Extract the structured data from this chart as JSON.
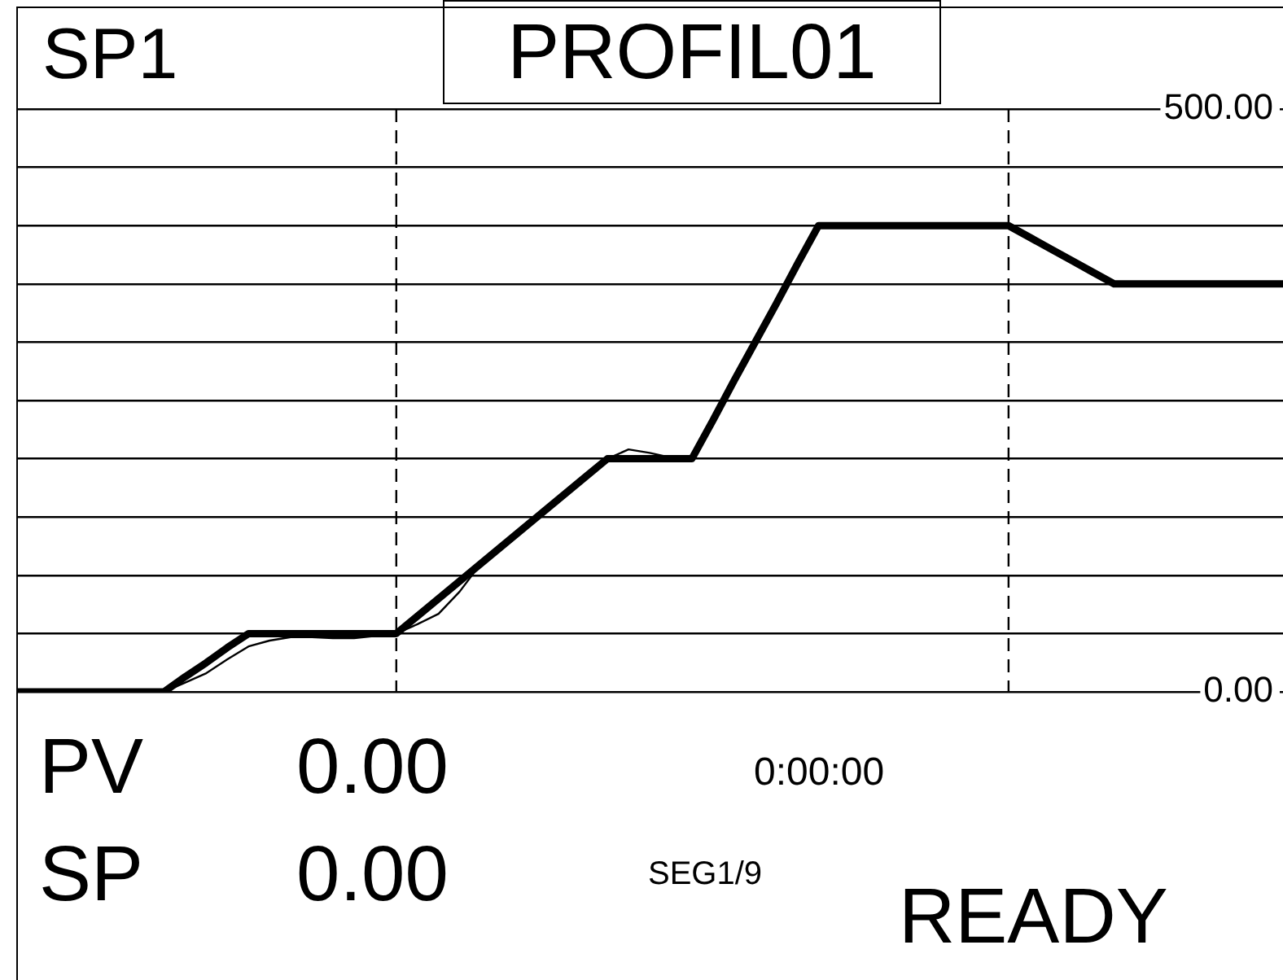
{
  "chart_data": {
    "type": "line",
    "title": "PROFIL01",
    "annotations": [
      "SP1",
      "PV",
      "0.00",
      "SP",
      "0.00",
      "0:00:00",
      "SEG1/9",
      "READY"
    ],
    "categories": [
      null,
      null,
      null,
      null,
      null,
      null,
      null,
      null,
      null,
      null,
      null,
      null,
      null,
      null,
      null,
      null,
      null,
      null,
      null,
      null,
      null,
      null,
      null,
      null,
      null,
      null,
      null,
      null,
      null,
      null,
      null,
      null,
      null,
      null,
      null,
      null,
      null,
      null,
      null,
      null,
      null,
      null,
      null,
      null,
      null,
      null,
      null,
      null,
      null,
      null,
      null,
      null,
      null,
      null,
      null,
      null,
      null,
      null,
      null,
      null,
      null
    ],
    "series": [
      {
        "color": "#000000",
        "values": [
          0,
          0,
          0,
          0,
          0,
          0,
          0,
          0,
          13,
          25,
          38,
          50,
          50,
          50,
          50,
          50,
          50,
          50,
          50,
          65,
          80,
          95,
          110,
          125,
          140,
          155,
          170,
          185,
          200,
          200,
          200,
          200,
          200,
          233,
          267,
          300,
          333,
          367,
          400,
          400,
          400,
          400,
          400,
          400,
          400,
          400,
          400,
          400,
          390,
          380,
          370,
          360,
          350,
          350,
          350,
          350,
          350,
          350,
          350,
          350,
          350
        ]
      },
      {
        "color": "#000000",
        "values": [
          0,
          0,
          0,
          0,
          0,
          0,
          0,
          0,
          8,
          16,
          28,
          39,
          44,
          47,
          47,
          46,
          46,
          48,
          50,
          58,
          67,
          86,
          110,
          125,
          140,
          155,
          170,
          185,
          200,
          208,
          205,
          201,
          200,
          230,
          null,
          null,
          null,
          null,
          null,
          null,
          null,
          null,
          null,
          null,
          null,
          null,
          null,
          null,
          null,
          null,
          null,
          null,
          null,
          null,
          null,
          null,
          null,
          null,
          null,
          null,
          null
        ]
      }
    ],
    "ylim": [
      0,
      500
    ],
    "yticks": [
      {
        "value": 0,
        "label": "0.00"
      },
      {
        "value": 50,
        "label": null
      },
      {
        "value": 100,
        "label": null
      },
      {
        "value": 150,
        "label": null
      },
      {
        "value": 200,
        "label": null
      },
      {
        "value": 250,
        "label": null
      },
      {
        "value": 300,
        "label": null
      },
      {
        "value": 350,
        "label": null
      },
      {
        "value": 400,
        "label": null
      },
      {
        "value": 450,
        "label": null
      },
      {
        "value": 500,
        "label": "500.00"
      }
    ],
    "tick_labels": "y",
    "grid": "y",
    "legend": false,
    "marker": "none",
    "line_style": "solid"
  }
}
